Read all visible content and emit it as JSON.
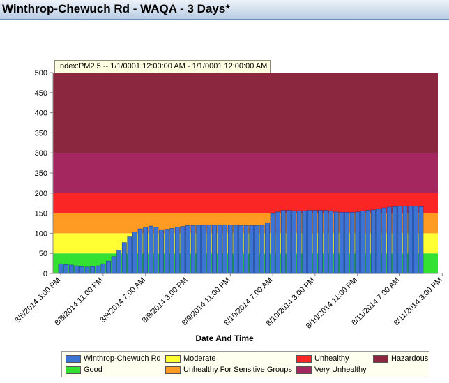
{
  "window": {
    "title": "Winthrop-Chewuch Rd - WAQA - 3 Days*"
  },
  "tooltip": {
    "text": "Index:PM2.5 -- 1/1/0001 12:00:00 AM  -  1/1/0001 12:00:00 AM"
  },
  "colors": {
    "good": "#33e133",
    "moderate": "#ffff33",
    "usg": "#ff9a22",
    "unhealthy": "#fa2525",
    "very_unhealthy": "#a4275f",
    "hazardous": "#8b2840",
    "bar": "#3d74d4",
    "bar_edge": "#1b3f8f"
  },
  "chart_data": {
    "type": "bar",
    "title": "",
    "xlabel": "Date And Time",
    "ylabel": "",
    "ylim": [
      0,
      500
    ],
    "yticks": [
      "0",
      "50",
      "100",
      "150",
      "200",
      "250",
      "300",
      "350",
      "400",
      "450",
      "500"
    ],
    "xticks": [
      "8/8/2014 3:00 PM",
      "8/8/2014 11:00 PM",
      "8/9/2014 7:00 AM",
      "8/9/2014 3:00 PM",
      "8/9/2014 11:00 PM",
      "8/10/2014 7:00 AM",
      "8/10/2014 3:00 PM",
      "8/10/2014 11:00 PM",
      "8/11/2014 7:00 AM",
      "8/11/2014 3:00 PM"
    ],
    "bands": [
      {
        "name": "Good",
        "from": 0,
        "to": 50
      },
      {
        "name": "Moderate",
        "from": 50,
        "to": 100
      },
      {
        "name": "Unhealthy For Sensitive Groups",
        "from": 100,
        "to": 150
      },
      {
        "name": "Unhealthy",
        "from": 150,
        "to": 200
      },
      {
        "name": "Very Unhealthy",
        "from": 200,
        "to": 300
      },
      {
        "name": "Hazardous",
        "from": 300,
        "to": 500
      }
    ],
    "series": [
      {
        "name": "Winthrop-Chewuch Rd",
        "values": [
          24,
          22,
          21,
          19,
          17,
          16,
          17,
          19,
          24,
          31,
          42,
          58,
          77,
          91,
          103,
          111,
          115,
          118,
          115,
          109,
          110,
          112,
          115,
          117,
          119,
          119,
          120,
          120,
          121,
          121,
          121,
          121,
          121,
          120,
          119,
          119,
          119,
          119,
          120,
          126,
          149,
          153,
          157,
          157,
          156,
          156,
          156,
          157,
          157,
          157,
          157,
          156,
          153,
          152,
          152,
          152,
          153,
          155,
          157,
          158,
          160,
          163,
          165,
          166,
          167,
          167,
          167,
          167,
          166
        ]
      }
    ]
  },
  "legend": {
    "items": [
      {
        "label": "Winthrop-Chewuch Rd",
        "color": "#3d74d4"
      },
      {
        "label": "Moderate",
        "color": "#ffff33"
      },
      {
        "label": "Unhealthy",
        "color": "#fa2525"
      },
      {
        "label": "Hazardous",
        "color": "#8b2840"
      },
      {
        "label": "Good",
        "color": "#33e133"
      },
      {
        "label": "Unhealthy For Sensitive Groups",
        "color": "#ff9a22"
      },
      {
        "label": "Very Unhealthy",
        "color": "#a4275f"
      }
    ]
  }
}
